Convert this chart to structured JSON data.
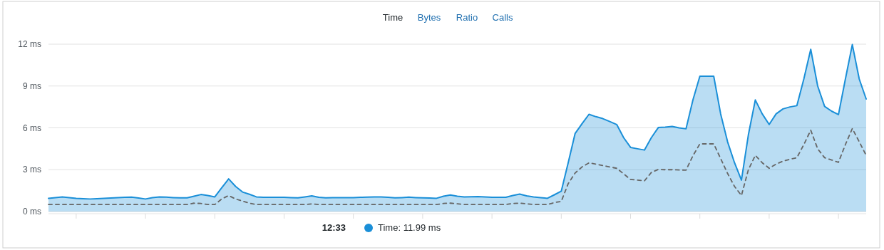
{
  "chart_data": {
    "type": "area",
    "categories": [
      null,
      null,
      null,
      null,
      null,
      null,
      null,
      null,
      null,
      null,
      null,
      null,
      null,
      null,
      null,
      null,
      null,
      null,
      null,
      null,
      null,
      null,
      null,
      null,
      null,
      null,
      null,
      null,
      null,
      null,
      null,
      null,
      null,
      null,
      null,
      null,
      null,
      null,
      null,
      null,
      null,
      null,
      null,
      null,
      null,
      null,
      null,
      null,
      null,
      null,
      null,
      null,
      null,
      null,
      null,
      null,
      null,
      null,
      null,
      null,
      null,
      null,
      null,
      null,
      null,
      null,
      null,
      null,
      null,
      null,
      null,
      null,
      null,
      null,
      null,
      null,
      null,
      null,
      null,
      null,
      null,
      null,
      null,
      null,
      null,
      null,
      null,
      null,
      null,
      null,
      null,
      null,
      null,
      null,
      null,
      null,
      null,
      null,
      null,
      null,
      null,
      null,
      null,
      null,
      null,
      null,
      null,
      null,
      null,
      null,
      null,
      null,
      null,
      null,
      null,
      null,
      null,
      null,
      null
    ],
    "ylim": [
      0,
      12
    ],
    "yticks": [
      {
        "value": 0,
        "label": "0 ms"
      },
      {
        "value": 3,
        "label": "3 ms"
      },
      {
        "value": 6,
        "label": "6 ms"
      },
      {
        "value": 9,
        "label": "9 ms"
      },
      {
        "value": 12,
        "label": "12 ms"
      }
    ],
    "tick_labels": "y",
    "grid": "y",
    "marker": "none",
    "series": [
      {
        "color": "#1a8fd8",
        "values": [
          0.95,
          1.0,
          1.05,
          1.0,
          0.95,
          0.92,
          0.9,
          0.92,
          0.95,
          0.97,
          1.0,
          1.02,
          1.03,
          0.97,
          0.9,
          1.0,
          1.05,
          1.03,
          1.0,
          0.98,
          0.98,
          1.1,
          1.22,
          1.15,
          1.05,
          1.7,
          2.34,
          1.8,
          1.4,
          1.24,
          1.05,
          1.02,
          1.02,
          1.02,
          1.02,
          1.0,
          0.98,
          1.05,
          1.12,
          1.02,
          0.98,
          0.99,
          1.0,
          1.0,
          1.0,
          1.02,
          1.03,
          1.05,
          1.05,
          1.02,
          0.98,
          1.0,
          1.03,
          1.0,
          0.98,
          0.97,
          0.95,
          1.1,
          1.19,
          1.1,
          1.05,
          1.06,
          1.07,
          1.05,
          1.02,
          1.02,
          1.02,
          1.15,
          1.25,
          1.12,
          1.05,
          1.0,
          0.95,
          1.2,
          1.46,
          3.5,
          5.6,
          6.3,
          6.97,
          6.8,
          6.66,
          6.45,
          6.24,
          5.3,
          4.6,
          4.5,
          4.41,
          5.3,
          6.02,
          6.05,
          6.1,
          6.0,
          5.93,
          8.0,
          9.7,
          9.7,
          9.7,
          7.0,
          5.0,
          3.5,
          2.25,
          5.5,
          8.0,
          7.0,
          6.24,
          7.0,
          7.36,
          7.5,
          7.59,
          9.5,
          11.63,
          9.0,
          7.54,
          7.2,
          6.95,
          9.5,
          11.97,
          9.5,
          8.07
        ]
      },
      {
        "type": "line",
        "color": "#666666",
        "line_style": "dashed",
        "values": [
          0.5,
          0.5,
          0.5,
          0.5,
          0.5,
          0.5,
          0.5,
          0.5,
          0.5,
          0.5,
          0.5,
          0.5,
          0.5,
          0.5,
          0.5,
          0.5,
          0.5,
          0.5,
          0.5,
          0.5,
          0.5,
          0.6,
          0.58,
          0.5,
          0.5,
          0.9,
          1.15,
          0.9,
          0.75,
          0.6,
          0.5,
          0.5,
          0.5,
          0.5,
          0.5,
          0.5,
          0.5,
          0.5,
          0.55,
          0.5,
          0.5,
          0.5,
          0.5,
          0.5,
          0.5,
          0.5,
          0.5,
          0.5,
          0.5,
          0.5,
          0.5,
          0.5,
          0.5,
          0.5,
          0.5,
          0.5,
          0.5,
          0.58,
          0.6,
          0.55,
          0.5,
          0.5,
          0.5,
          0.5,
          0.5,
          0.5,
          0.5,
          0.58,
          0.6,
          0.55,
          0.5,
          0.5,
          0.5,
          0.64,
          0.73,
          2.0,
          2.76,
          3.2,
          3.49,
          3.4,
          3.3,
          3.2,
          3.1,
          2.7,
          2.3,
          2.25,
          2.2,
          2.8,
          3.02,
          3.0,
          3.0,
          2.98,
          2.97,
          4.0,
          4.85,
          4.85,
          4.85,
          3.8,
          2.73,
          1.8,
          1.15,
          3.0,
          4.03,
          3.5,
          3.1,
          3.4,
          3.61,
          3.75,
          3.86,
          4.8,
          5.83,
          4.5,
          3.86,
          3.7,
          3.53,
          4.8,
          5.95,
          5.0,
          4.03
        ]
      }
    ],
    "annotations": [
      "Time",
      "Bytes",
      "Ratio",
      "Calls",
      "12:33",
      "Time: 11.99 ms"
    ]
  }
}
